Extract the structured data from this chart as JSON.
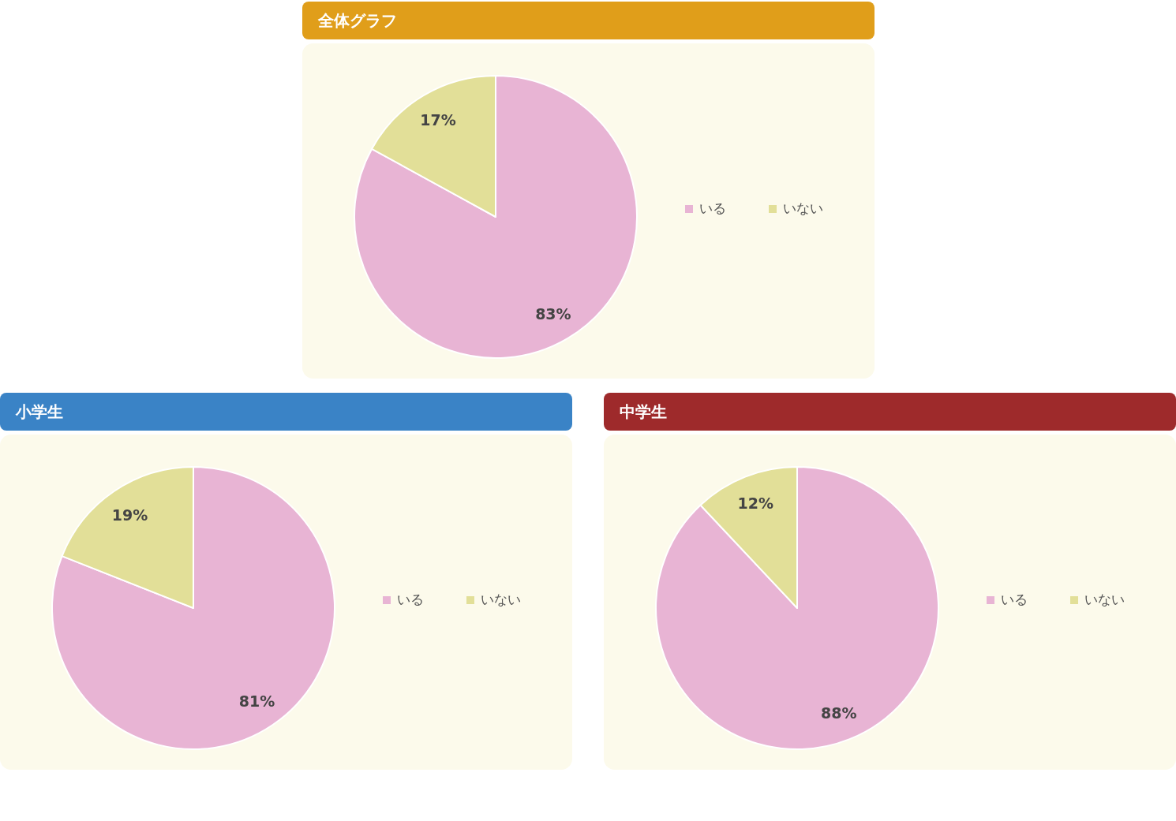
{
  "chart_data": [
    {
      "type": "pie",
      "title": "全体グラフ",
      "categories": [
        "いる",
        "いない"
      ],
      "values": [
        83,
        17
      ],
      "value_labels": [
        "83%",
        "17%"
      ],
      "colors": [
        "#e8b4d4",
        "#e2df98"
      ],
      "legend": "right"
    },
    {
      "type": "pie",
      "title": "小学生",
      "categories": [
        "いる",
        "いない"
      ],
      "values": [
        81,
        19
      ],
      "value_labels": [
        "81%",
        "19%"
      ],
      "colors": [
        "#e8b4d4",
        "#e2df98"
      ],
      "legend": "right"
    },
    {
      "type": "pie",
      "title": "中学生",
      "categories": [
        "いる",
        "いない"
      ],
      "values": [
        88,
        12
      ],
      "value_labels": [
        "88%",
        "12%"
      ],
      "colors": [
        "#e8b4d4",
        "#e2df98"
      ],
      "legend": "right"
    }
  ]
}
